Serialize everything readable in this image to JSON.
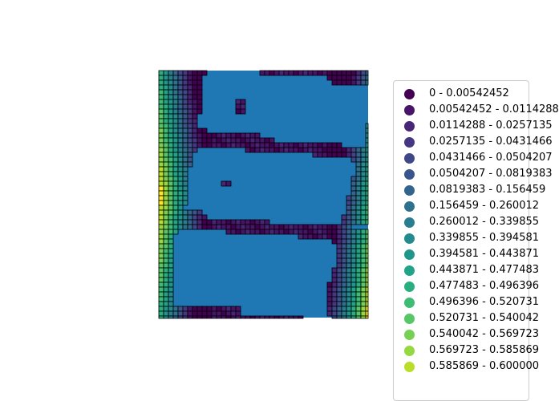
{
  "chart_data": {
    "type": "heatmap",
    "title": "",
    "grid": false,
    "legend_placement": "right",
    "background_fill": "#1f77b4",
    "colormap": "viridis",
    "grid_cols": 44,
    "grid_rows": 52,
    "legend_entries": [
      {
        "label": "0 - 0.00542452",
        "color": "#440154"
      },
      {
        "label": "0.00542452 - 0.0114288",
        "color": "#481467"
      },
      {
        "label": "0.0114288 - 0.0257135",
        "color": "#482576"
      },
      {
        "label": "0.0257135 - 0.0431466",
        "color": "#453781"
      },
      {
        "label": "0.0431466 - 0.0504207",
        "color": "#3f4788"
      },
      {
        "label": "0.0504207 - 0.0819383",
        "color": "#39558c"
      },
      {
        "label": "0.0819383 - 0.156459",
        "color": "#32648e"
      },
      {
        "label": "0.156459 - 0.260012",
        "color": "#2d718e"
      },
      {
        "label": "0.260012 - 0.339855",
        "color": "#287d8e"
      },
      {
        "label": "0.339855 - 0.394581",
        "color": "#238a8d"
      },
      {
        "label": "0.394581 - 0.443871",
        "color": "#1f968b"
      },
      {
        "label": "0.443871 - 0.477483",
        "color": "#20a386"
      },
      {
        "label": "0.477483 - 0.496396",
        "color": "#29af7f"
      },
      {
        "label": "0.496396 - 0.520731",
        "color": "#3dbc74"
      },
      {
        "label": "0.520731 - 0.540042",
        "color": "#56c667"
      },
      {
        "label": "0.540042 - 0.569723",
        "color": "#75d054"
      },
      {
        "label": "0.569723 - 0.585869",
        "color": "#95d840"
      },
      {
        "label": "0.585869 - 0.600000",
        "color": "#bade28"
      }
    ],
    "band_colors": [
      "#fde725",
      "#bade28",
      "#95d840",
      "#75d054",
      "#56c667",
      "#3dbc74",
      "#29af7f",
      "#20a386",
      "#1f968b",
      "#238a8d",
      "#287d8e",
      "#2d718e",
      "#32648e",
      "#39558c",
      "#3f4788",
      "#453781",
      "#482576",
      "#481467",
      "#440154"
    ],
    "cells": [
      {
        "row": 0,
        "c1": 0,
        "c2": 9
      },
      {
        "row": 0,
        "c1": 21,
        "c2": 43
      },
      {
        "row": 1,
        "c1": 0,
        "c2": 8
      },
      {
        "row": 1,
        "c1": 35,
        "c2": 43
      },
      {
        "row": 2,
        "c1": 0,
        "c2": 8
      },
      {
        "row": 2,
        "c1": 36,
        "c2": 43
      },
      {
        "row": 3,
        "c1": 0,
        "c2": 8
      },
      {
        "row": 4,
        "c1": 0,
        "c2": 8
      },
      {
        "row": 5,
        "c1": 0,
        "c2": 8
      },
      {
        "row": 6,
        "c1": 0,
        "c2": 8
      },
      {
        "row": 6,
        "c1": 16,
        "c2": 17
      },
      {
        "row": 7,
        "c1": 0,
        "c2": 8
      },
      {
        "row": 7,
        "c1": 16,
        "c2": 17
      },
      {
        "row": 8,
        "c1": 0,
        "c2": 8
      },
      {
        "row": 8,
        "c1": 16,
        "c2": 17
      },
      {
        "row": 9,
        "c1": 0,
        "c2": 7
      },
      {
        "row": 10,
        "c1": 0,
        "c2": 7
      },
      {
        "row": 11,
        "c1": 0,
        "c2": 7
      },
      {
        "row": 11,
        "c1": 43,
        "c2": 43
      },
      {
        "row": 12,
        "c1": 0,
        "c2": 9
      },
      {
        "row": 12,
        "c1": 43,
        "c2": 43
      },
      {
        "row": 13,
        "c1": 0,
        "c2": 20
      },
      {
        "row": 13,
        "c1": 43,
        "c2": 43
      },
      {
        "row": 14,
        "c1": 0,
        "c2": 23
      },
      {
        "row": 14,
        "c1": 43,
        "c2": 43
      },
      {
        "row": 15,
        "c1": 0,
        "c2": 37
      },
      {
        "row": 15,
        "c1": 43,
        "c2": 43
      },
      {
        "row": 16,
        "c1": 0,
        "c2": 7
      },
      {
        "row": 16,
        "c1": 18,
        "c2": 43
      },
      {
        "row": 17,
        "c1": 0,
        "c2": 6
      },
      {
        "row": 17,
        "c1": 32,
        "c2": 43
      },
      {
        "row": 18,
        "c1": 0,
        "c2": 6
      },
      {
        "row": 18,
        "c1": 40,
        "c2": 43
      },
      {
        "row": 19,
        "c1": 0,
        "c2": 6
      },
      {
        "row": 19,
        "c1": 41,
        "c2": 43
      },
      {
        "row": 20,
        "c1": 0,
        "c2": 5
      },
      {
        "row": 20,
        "c1": 41,
        "c2": 43
      },
      {
        "row": 21,
        "c1": 0,
        "c2": 5
      },
      {
        "row": 21,
        "c1": 41,
        "c2": 43
      },
      {
        "row": 22,
        "c1": 0,
        "c2": 5
      },
      {
        "row": 22,
        "c1": 40,
        "c2": 43
      },
      {
        "row": 23,
        "c1": 0,
        "c2": 5
      },
      {
        "row": 23,
        "c1": 13,
        "c2": 14
      },
      {
        "row": 23,
        "c1": 40,
        "c2": 43
      },
      {
        "row": 24,
        "c1": 0,
        "c2": 5
      },
      {
        "row": 24,
        "c1": 40,
        "c2": 43
      },
      {
        "row": 25,
        "c1": 0,
        "c2": 5
      },
      {
        "row": 25,
        "c1": 40,
        "c2": 43
      },
      {
        "row": 26,
        "c1": 0,
        "c2": 5
      },
      {
        "row": 26,
        "c1": 39,
        "c2": 43
      },
      {
        "row": 27,
        "c1": 0,
        "c2": 5
      },
      {
        "row": 27,
        "c1": 39,
        "c2": 43
      },
      {
        "row": 28,
        "c1": 0,
        "c2": 4
      },
      {
        "row": 28,
        "c1": 39,
        "c2": 43
      },
      {
        "row": 29,
        "c1": 0,
        "c2": 8
      },
      {
        "row": 29,
        "c1": 39,
        "c2": 43
      },
      {
        "row": 30,
        "c1": 0,
        "c2": 9
      },
      {
        "row": 30,
        "c1": 38,
        "c2": 43
      },
      {
        "row": 31,
        "c1": 0,
        "c2": 22
      },
      {
        "row": 31,
        "c1": 38,
        "c2": 43
      },
      {
        "row": 32,
        "c1": 0,
        "c2": 39
      },
      {
        "row": 33,
        "c1": 0,
        "c2": 3
      },
      {
        "row": 33,
        "c1": 14,
        "c2": 43
      },
      {
        "row": 34,
        "c1": 0,
        "c2": 2
      },
      {
        "row": 34,
        "c1": 29,
        "c2": 43
      },
      {
        "row": 35,
        "c1": 0,
        "c2": 2
      },
      {
        "row": 35,
        "c1": 36,
        "c2": 43
      },
      {
        "row": 36,
        "c1": 0,
        "c2": 2
      },
      {
        "row": 36,
        "c1": 37,
        "c2": 43
      },
      {
        "row": 37,
        "c1": 0,
        "c2": 2
      },
      {
        "row": 37,
        "c1": 37,
        "c2": 43
      },
      {
        "row": 38,
        "c1": 0,
        "c2": 2
      },
      {
        "row": 38,
        "c1": 37,
        "c2": 43
      },
      {
        "row": 39,
        "c1": 0,
        "c2": 2
      },
      {
        "row": 39,
        "c1": 37,
        "c2": 43
      },
      {
        "row": 40,
        "c1": 0,
        "c2": 2
      },
      {
        "row": 40,
        "c1": 37,
        "c2": 43
      },
      {
        "row": 41,
        "c1": 0,
        "c2": 2
      },
      {
        "row": 41,
        "c1": 36,
        "c2": 43
      },
      {
        "row": 42,
        "c1": 0,
        "c2": 2
      },
      {
        "row": 42,
        "c1": 36,
        "c2": 43
      },
      {
        "row": 43,
        "c1": 0,
        "c2": 2
      },
      {
        "row": 43,
        "c1": 36,
        "c2": 43
      },
      {
        "row": 44,
        "c1": 0,
        "c2": 2
      },
      {
        "row": 44,
        "c1": 35,
        "c2": 43
      },
      {
        "row": 45,
        "c1": 0,
        "c2": 2
      },
      {
        "row": 45,
        "c1": 35,
        "c2": 43
      },
      {
        "row": 46,
        "c1": 0,
        "c2": 2
      },
      {
        "row": 46,
        "c1": 35,
        "c2": 43
      },
      {
        "row": 47,
        "c1": 0,
        "c2": 2
      },
      {
        "row": 47,
        "c1": 35,
        "c2": 43
      },
      {
        "row": 48,
        "c1": 0,
        "c2": 2
      },
      {
        "row": 48,
        "c1": 35,
        "c2": 43
      },
      {
        "row": 49,
        "c1": 0,
        "c2": 16
      },
      {
        "row": 49,
        "c1": 35,
        "c2": 43
      },
      {
        "row": 50,
        "c1": 0,
        "c2": 16
      },
      {
        "row": 50,
        "c1": 35,
        "c2": 43
      },
      {
        "row": 51,
        "c1": 0,
        "c2": 29
      },
      {
        "row": 51,
        "c1": 36,
        "c2": 43
      }
    ]
  }
}
